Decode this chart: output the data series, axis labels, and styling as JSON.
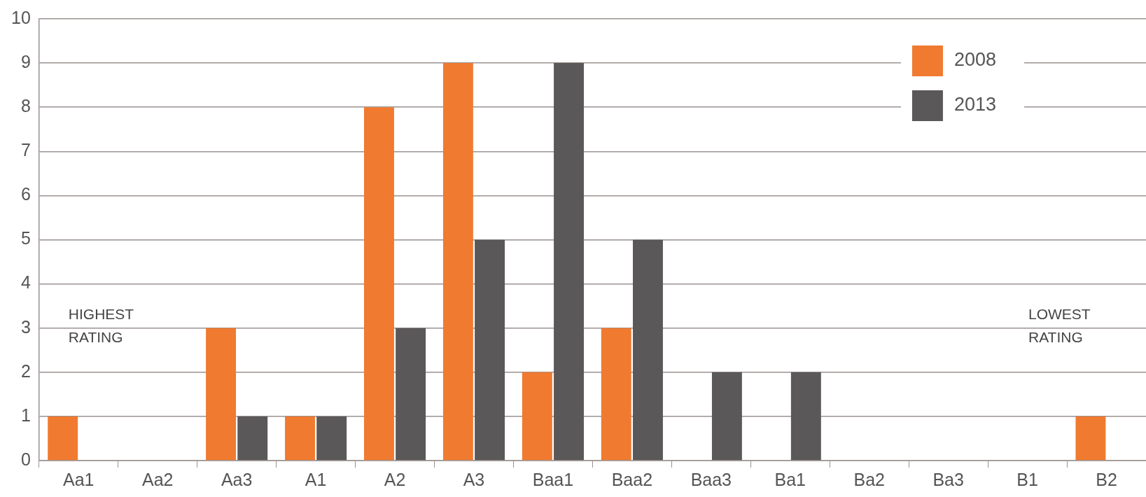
{
  "chart_data": {
    "type": "bar",
    "categories": [
      "Aa1",
      "Aa2",
      "Aa3",
      "A1",
      "A2",
      "A3",
      "Baa1",
      "Baa2",
      "Baa3",
      "Ba1",
      "Ba2",
      "Ba3",
      "B1",
      "B2"
    ],
    "series": [
      {
        "name": "2008",
        "color": "#f07a30",
        "values": [
          1,
          0,
          3,
          1,
          8,
          9,
          2,
          3,
          0,
          0,
          0,
          0,
          0,
          1
        ]
      },
      {
        "name": "2013",
        "color": "#5a5858",
        "values": [
          0,
          0,
          1,
          1,
          3,
          5,
          9,
          5,
          2,
          2,
          0,
          0,
          0,
          0
        ]
      }
    ],
    "ylim": [
      0,
      10
    ],
    "yticks": [
      0,
      1,
      2,
      3,
      4,
      5,
      6,
      7,
      8,
      9,
      10
    ],
    "grid": "y",
    "legend": "top right",
    "annotations": [
      "HIGHEST RATING",
      "LOWEST RATING"
    ]
  }
}
